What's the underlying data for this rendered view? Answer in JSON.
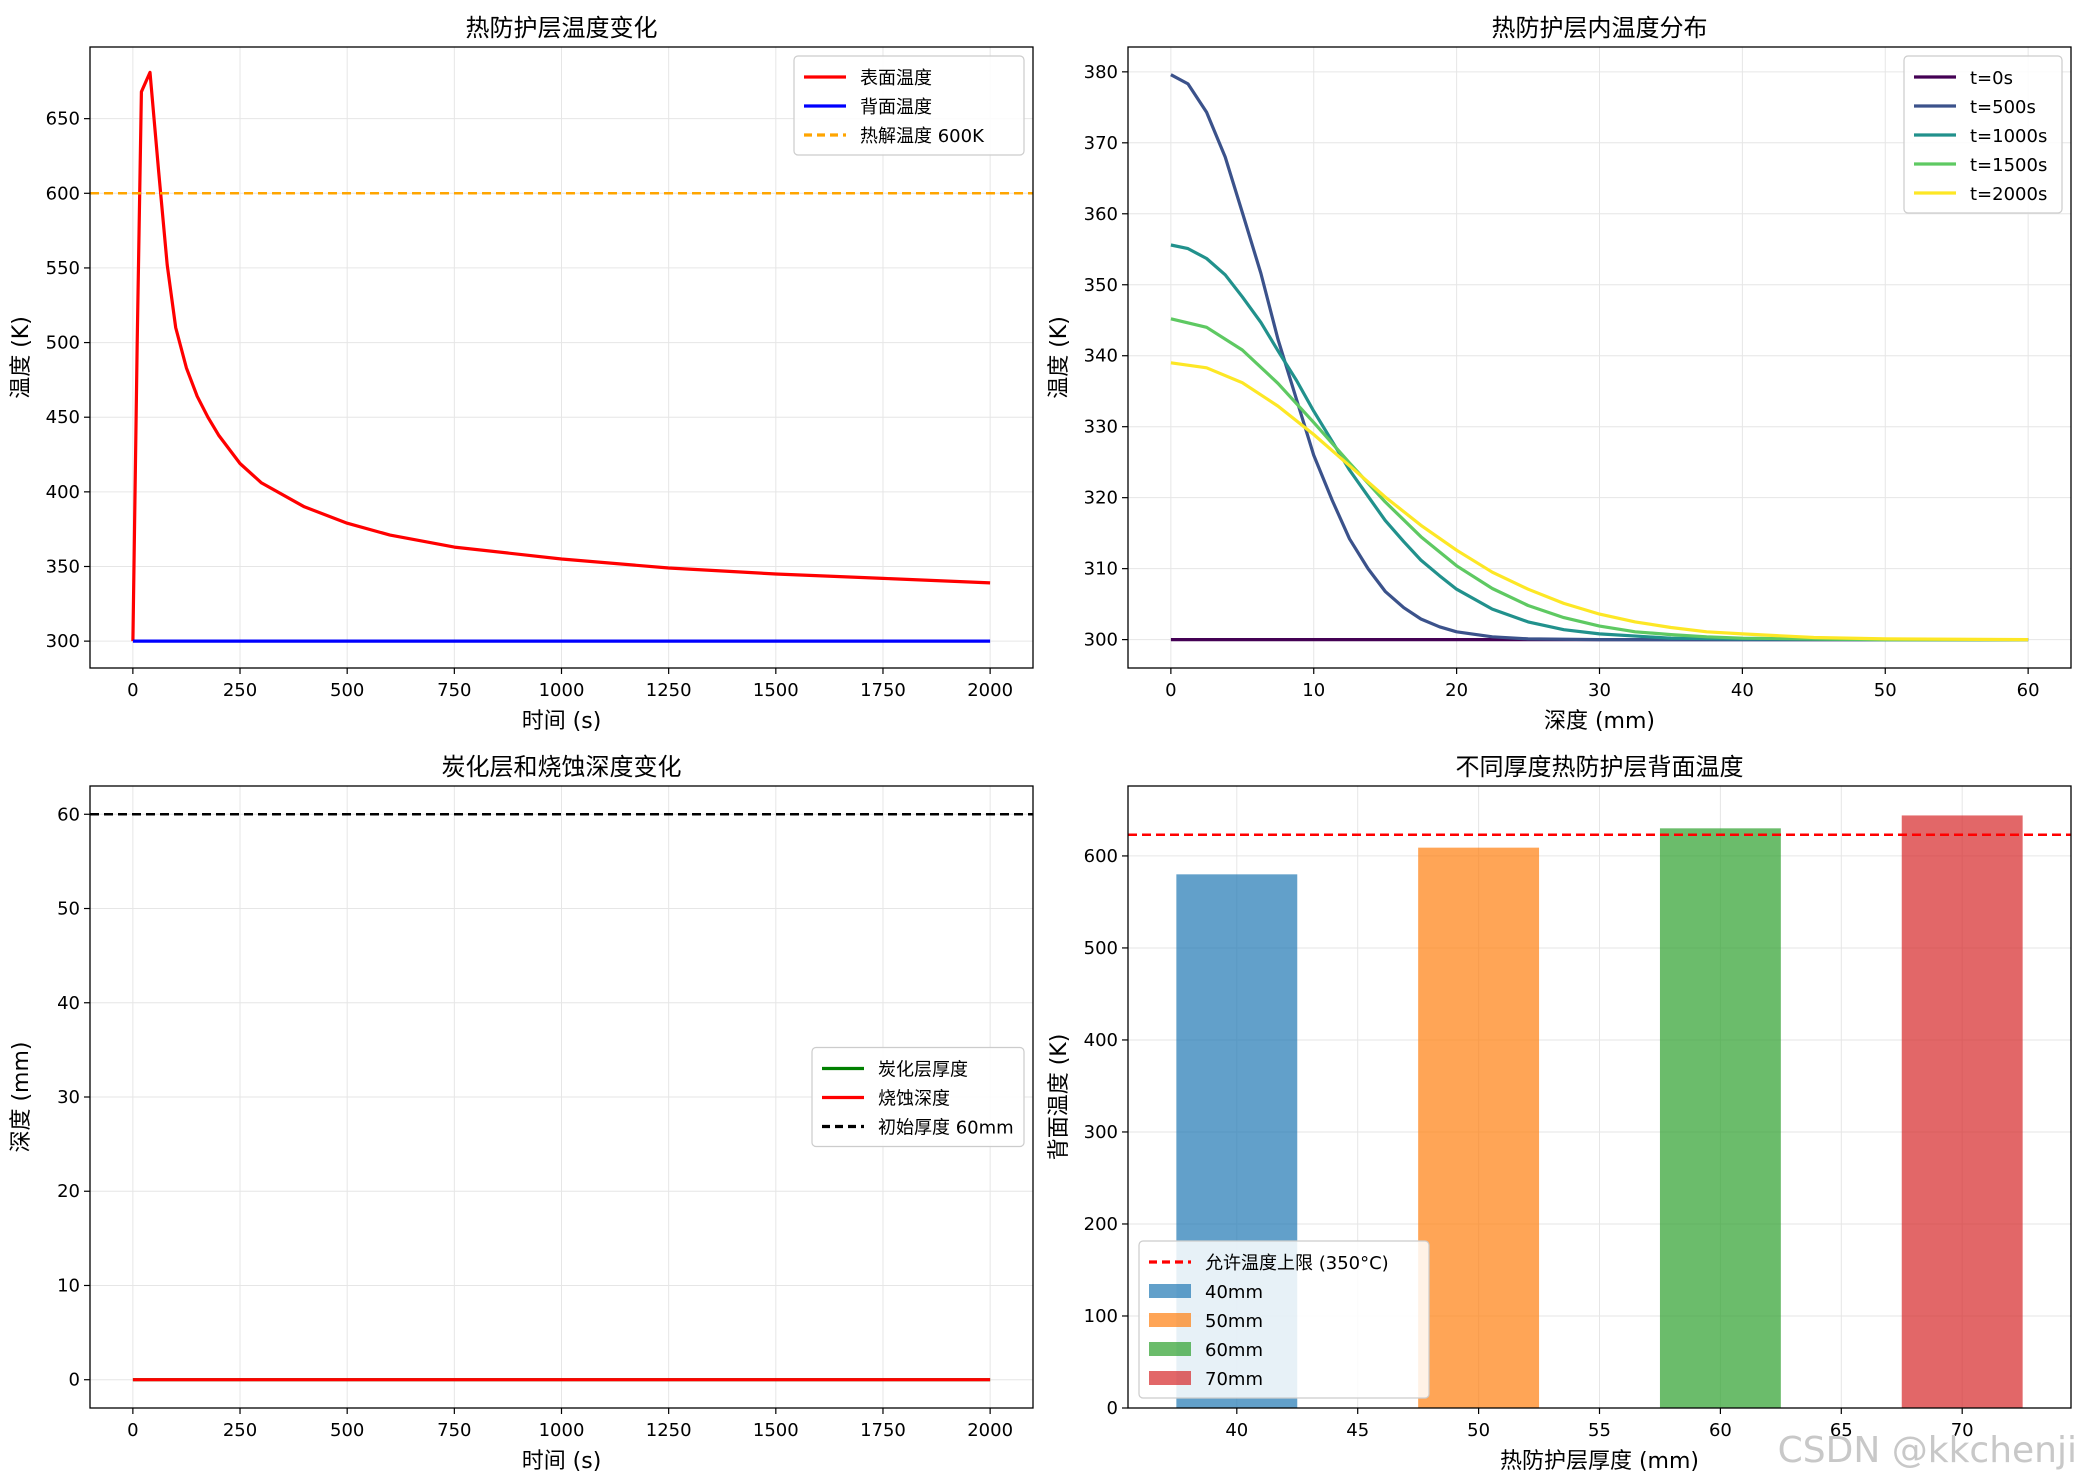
{
  "watermark": "CSDN @kkchenji",
  "chart_data": [
    {
      "type": "line",
      "title": "热防护层温度变化",
      "xlabel": "时间 (s)",
      "ylabel": "温度 (K)",
      "xlim": [
        -100,
        2100
      ],
      "ylim": [
        282,
        698
      ],
      "xticks": [
        0,
        250,
        500,
        750,
        1000,
        1250,
        1500,
        1750,
        2000
      ],
      "yticks": [
        300,
        350,
        400,
        450,
        500,
        550,
        600,
        650
      ],
      "grid": true,
      "legend_position": "top-right",
      "series": [
        {
          "name": "表面温度",
          "color": "#ff0000",
          "style": "solid",
          "x": [
            0,
            10,
            20,
            40,
            60,
            80,
            100,
            125,
            150,
            175,
            200,
            250,
            300,
            400,
            500,
            600,
            750,
            1000,
            1250,
            1500,
            1750,
            2000
          ],
          "y": [
            300,
            500,
            668,
            681,
            615,
            552,
            510,
            483,
            464,
            450,
            438,
            419,
            406,
            390,
            379,
            371,
            363,
            355,
            349,
            345,
            342,
            339
          ]
        },
        {
          "name": "背面温度",
          "color": "#0000ff",
          "style": "solid",
          "x": [
            0,
            2000
          ],
          "y": [
            300,
            300
          ]
        },
        {
          "name": "热解温度 600K",
          "color": "#ffa500",
          "style": "dashed",
          "hline": 600
        }
      ]
    },
    {
      "type": "line",
      "title": "热防护层内温度分布",
      "xlabel": "深度 (mm)",
      "ylabel": "温度 (K)",
      "xlim": [
        -3,
        63
      ],
      "ylim": [
        296,
        383.5
      ],
      "xticks": [
        0,
        10,
        20,
        30,
        40,
        50,
        60
      ],
      "yticks": [
        300,
        310,
        320,
        330,
        340,
        350,
        360,
        370,
        380
      ],
      "grid": true,
      "legend_position": "top-right",
      "series": [
        {
          "name": "t=0s",
          "color": "#440154",
          "x": [
            0,
            60
          ],
          "y": [
            300,
            300
          ]
        },
        {
          "name": "t=500s",
          "color": "#3b528b",
          "x": [
            0,
            1.2,
            2.5,
            3.8,
            5,
            6.3,
            7.5,
            8.8,
            10,
            11.3,
            12.5,
            13.8,
            15,
            16.3,
            17.5,
            18.8,
            20,
            22.5,
            25,
            30,
            40,
            60
          ],
          "y": [
            379.6,
            378.3,
            374.3,
            368.0,
            360.2,
            351.6,
            342.3,
            333.8,
            326.0,
            319.6,
            314.2,
            310.0,
            306.8,
            304.5,
            302.9,
            301.8,
            301.1,
            300.4,
            300.1,
            300,
            300,
            300
          ]
        },
        {
          "name": "t=1000s",
          "color": "#21918c",
          "x": [
            0,
            1.2,
            2.5,
            3.8,
            5,
            6.3,
            7.5,
            8.8,
            10,
            11.3,
            12.5,
            13.8,
            15,
            16.3,
            17.5,
            18.8,
            20,
            22.5,
            25,
            27.5,
            30,
            35,
            40,
            50,
            60
          ],
          "y": [
            355.6,
            355.1,
            353.7,
            351.4,
            348.3,
            344.7,
            340.7,
            336.5,
            332.2,
            327.9,
            323.9,
            320.2,
            316.8,
            313.8,
            311.2,
            309.0,
            307.1,
            304.3,
            302.5,
            301.4,
            300.8,
            300.2,
            300.1,
            300,
            300
          ]
        },
        {
          "name": "t=1500s",
          "color": "#5ec962",
          "x": [
            0,
            2.5,
            5,
            7.5,
            10,
            12.5,
            15,
            17.5,
            20,
            22.5,
            25,
            27.5,
            30,
            32.5,
            35,
            37.5,
            40,
            45,
            50,
            60
          ],
          "y": [
            345.2,
            344.0,
            340.8,
            336.1,
            330.6,
            324.9,
            319.4,
            314.5,
            310.4,
            307.2,
            304.8,
            303.1,
            301.9,
            301.1,
            300.7,
            300.4,
            300.2,
            300.1,
            300,
            300
          ]
        },
        {
          "name": "t=2000s",
          "color": "#fde725",
          "x": [
            0,
            2.5,
            5,
            7.5,
            10,
            12.5,
            15,
            17.5,
            20,
            22.5,
            25,
            27.5,
            30,
            32.5,
            35,
            37.5,
            40,
            45,
            50,
            60
          ],
          "y": [
            339.0,
            338.3,
            336.2,
            332.9,
            328.9,
            324.5,
            320.1,
            316.1,
            312.6,
            309.5,
            307.1,
            305.1,
            303.6,
            302.5,
            301.7,
            301.1,
            300.8,
            300.3,
            300.1,
            300
          ]
        }
      ]
    },
    {
      "type": "line",
      "title": "炭化层和烧蚀深度变化",
      "xlabel": "时间 (s)",
      "ylabel": "深度 (mm)",
      "xlim": [
        -100,
        2100
      ],
      "ylim": [
        -3,
        63
      ],
      "xticks": [
        0,
        250,
        500,
        750,
        1000,
        1250,
        1500,
        1750,
        2000
      ],
      "yticks": [
        0,
        10,
        20,
        30,
        40,
        50,
        60
      ],
      "grid": true,
      "legend_position": "center-right",
      "series": [
        {
          "name": "炭化层厚度",
          "color": "#008000",
          "style": "solid",
          "x": [
            0,
            2000
          ],
          "y": [
            0,
            0
          ]
        },
        {
          "name": "烧蚀深度",
          "color": "#ff0000",
          "style": "solid",
          "x": [
            0,
            2000
          ],
          "y": [
            0,
            0
          ]
        },
        {
          "name": "初始厚度 60mm",
          "color": "#000000",
          "style": "dashed",
          "hline": 60
        }
      ]
    },
    {
      "type": "bar",
      "title": "不同厚度热防护层背面温度",
      "xlabel": "热防护层厚度 (mm)",
      "ylabel": "背面温度 (K)",
      "xlim": [
        35.5,
        74.5
      ],
      "ylim": [
        0,
        676
      ],
      "xticks": [
        40,
        45,
        50,
        55,
        60,
        65,
        70
      ],
      "yticks": [
        0,
        100,
        200,
        300,
        400,
        500,
        600
      ],
      "grid": true,
      "legend_position": "bottom-left",
      "bar_width": 5,
      "bars": [
        {
          "label": "40mm",
          "x": 40,
          "value": 580,
          "color": "#1f77b4"
        },
        {
          "label": "50mm",
          "x": 50,
          "value": 609,
          "color": "#ff7f0e"
        },
        {
          "label": "60mm",
          "x": 60,
          "value": 630,
          "color": "#2ca02c"
        },
        {
          "label": "70mm",
          "x": 70,
          "value": 644,
          "color": "#d62728"
        }
      ],
      "reference_line": {
        "name": "允许温度上限 (350°C)",
        "value": 623,
        "color": "#ff0000",
        "style": "dashed"
      }
    }
  ]
}
